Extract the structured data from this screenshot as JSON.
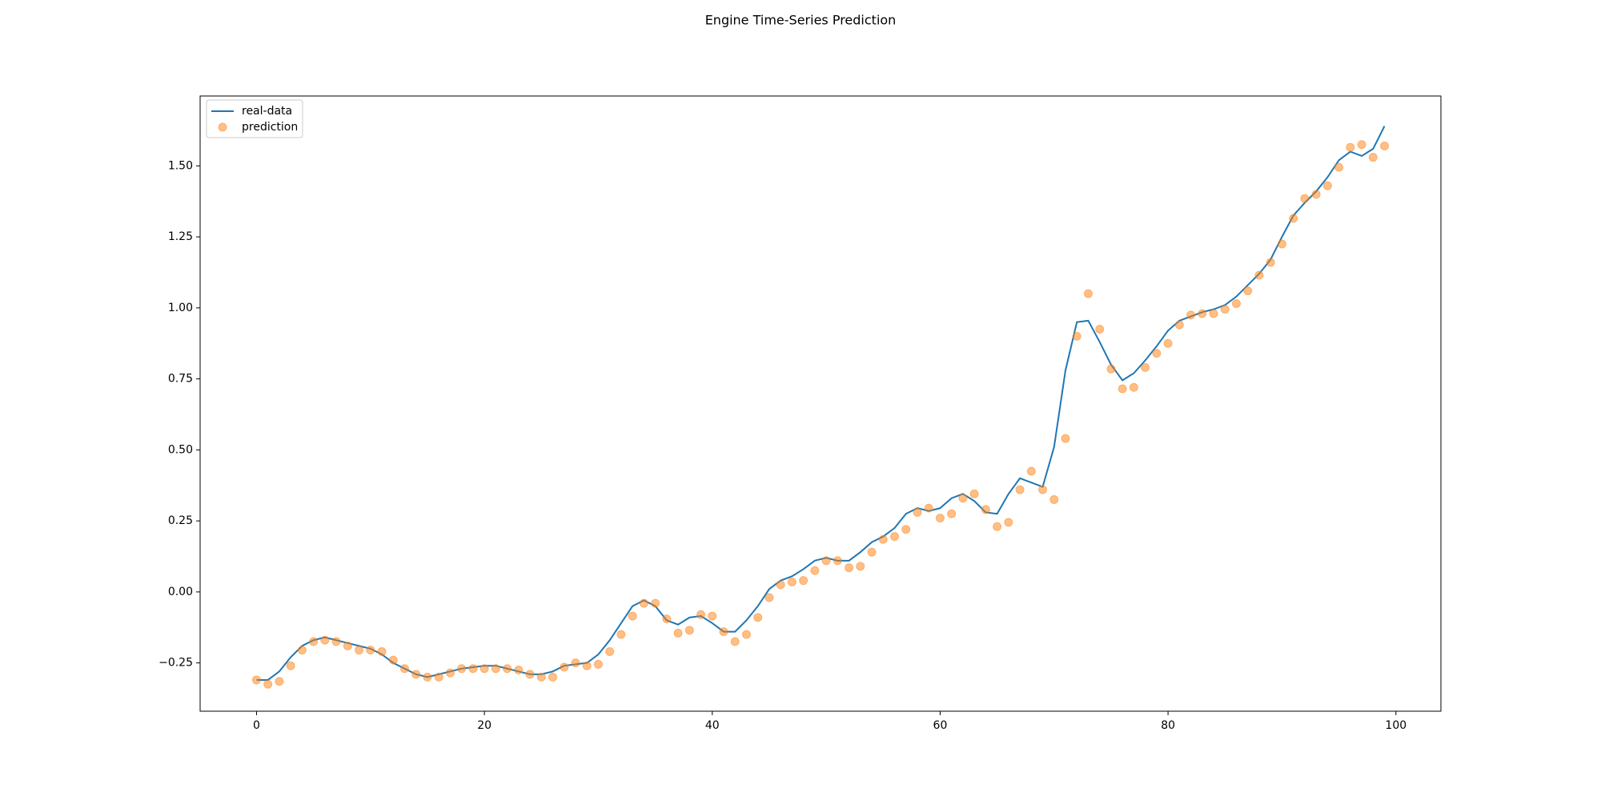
{
  "chart_data": {
    "type": "line",
    "title": "Engine Time-Series Prediction",
    "x": [
      0,
      1,
      2,
      3,
      4,
      5,
      6,
      7,
      8,
      9,
      10,
      11,
      12,
      13,
      14,
      15,
      16,
      17,
      18,
      19,
      20,
      21,
      22,
      23,
      24,
      25,
      26,
      27,
      28,
      29,
      30,
      31,
      32,
      33,
      34,
      35,
      36,
      37,
      38,
      39,
      40,
      41,
      42,
      43,
      44,
      45,
      46,
      47,
      48,
      49,
      50,
      51,
      52,
      53,
      54,
      55,
      56,
      57,
      58,
      59,
      60,
      61,
      62,
      63,
      64,
      65,
      66,
      67,
      68,
      69,
      70,
      71,
      72,
      73,
      74,
      75,
      76,
      77,
      78,
      79,
      80,
      81,
      82,
      83,
      84,
      85,
      86,
      87,
      88,
      89,
      90,
      91,
      92,
      93,
      94,
      95,
      96,
      97,
      98,
      99
    ],
    "series": [
      {
        "name": "real-data",
        "kind": "line",
        "color": "#1f77b4",
        "values": [
          -0.31,
          -0.31,
          -0.28,
          -0.23,
          -0.19,
          -0.17,
          -0.16,
          -0.17,
          -0.18,
          -0.19,
          -0.2,
          -0.22,
          -0.25,
          -0.27,
          -0.29,
          -0.3,
          -0.29,
          -0.28,
          -0.27,
          -0.265,
          -0.26,
          -0.26,
          -0.27,
          -0.28,
          -0.29,
          -0.29,
          -0.28,
          -0.26,
          -0.255,
          -0.25,
          -0.22,
          -0.17,
          -0.11,
          -0.05,
          -0.03,
          -0.05,
          -0.1,
          -0.115,
          -0.09,
          -0.085,
          -0.11,
          -0.14,
          -0.14,
          -0.1,
          -0.05,
          0.01,
          0.04,
          0.055,
          0.08,
          0.11,
          0.12,
          0.11,
          0.11,
          0.14,
          0.175,
          0.195,
          0.225,
          0.275,
          0.295,
          0.285,
          0.295,
          0.33,
          0.345,
          0.32,
          0.28,
          0.275,
          0.345,
          0.4,
          0.385,
          0.37,
          0.51,
          0.78,
          0.95,
          0.955,
          0.88,
          0.8,
          0.745,
          0.77,
          0.815,
          0.865,
          0.92,
          0.955,
          0.97,
          0.985,
          0.995,
          1.01,
          1.04,
          1.08,
          1.12,
          1.17,
          1.25,
          1.325,
          1.37,
          1.41,
          1.46,
          1.52,
          1.55,
          1.535,
          1.56,
          1.64
        ]
      },
      {
        "name": "prediction",
        "kind": "scatter",
        "color": "#ff7f0e",
        "values": [
          -0.31,
          -0.325,
          -0.315,
          -0.26,
          -0.205,
          -0.175,
          -0.17,
          -0.175,
          -0.19,
          -0.205,
          -0.205,
          -0.21,
          -0.24,
          -0.27,
          -0.29,
          -0.3,
          -0.3,
          -0.285,
          -0.27,
          -0.27,
          -0.27,
          -0.27,
          -0.27,
          -0.275,
          -0.29,
          -0.3,
          -0.3,
          -0.265,
          -0.25,
          -0.26,
          -0.255,
          -0.21,
          -0.15,
          -0.085,
          -0.04,
          -0.04,
          -0.095,
          -0.145,
          -0.135,
          -0.08,
          -0.085,
          -0.14,
          -0.175,
          -0.15,
          -0.09,
          -0.02,
          0.025,
          0.035,
          0.04,
          0.075,
          0.11,
          0.11,
          0.085,
          0.09,
          0.14,
          0.185,
          0.195,
          0.22,
          0.28,
          0.295,
          0.26,
          0.275,
          0.33,
          0.345,
          0.29,
          0.23,
          0.245,
          0.36,
          0.425,
          0.36,
          0.325,
          0.54,
          0.9,
          1.05,
          0.925,
          0.785,
          0.715,
          0.72,
          0.79,
          0.84,
          0.875,
          0.94,
          0.975,
          0.98,
          0.98,
          0.995,
          1.015,
          1.06,
          1.115,
          1.16,
          1.225,
          1.315,
          1.385,
          1.4,
          1.43,
          1.495,
          1.565,
          1.575,
          1.53,
          1.57
        ]
      }
    ],
    "xlim": [
      -4.95,
      103.95
    ],
    "ylim": [
      -0.42,
      1.746
    ],
    "xticks": [
      0,
      20,
      40,
      60,
      80,
      100
    ],
    "yticks": [
      {
        "value": -0.25,
        "label": "−0.25"
      },
      {
        "value": 0,
        "label": "0.00"
      },
      {
        "value": 0.25,
        "label": "0.25"
      },
      {
        "value": 0.5,
        "label": "0.50"
      },
      {
        "value": 0.75,
        "label": "0.75"
      },
      {
        "value": 1,
        "label": "1.00"
      },
      {
        "value": 1.25,
        "label": "1.25"
      },
      {
        "value": 1.5,
        "label": "1.50"
      }
    ],
    "legend": "upper left",
    "grid": false
  }
}
